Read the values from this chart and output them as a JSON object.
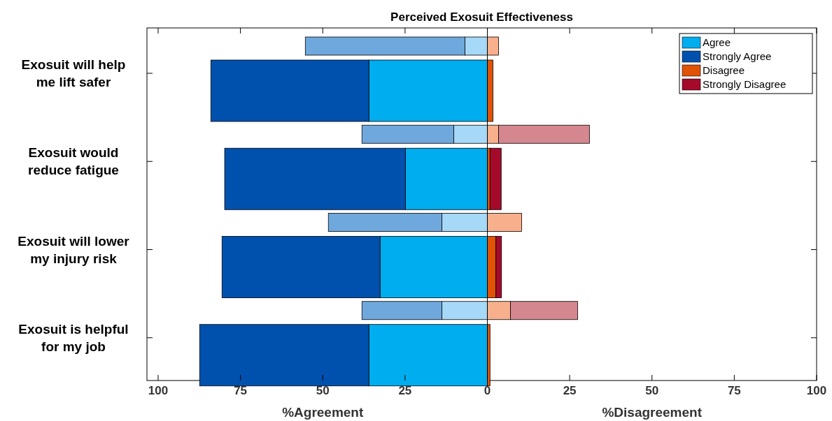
{
  "chart_data": {
    "type": "bar",
    "title": "Perceived Exosuit Effectiveness",
    "orientation": "horizontal",
    "stacked": true,
    "categories": [
      null,
      "Exosuit will  help me lift safer",
      null,
      "Exosuit would reduce fatigue",
      null,
      "Exosuit will lower my injury risk",
      null,
      "Exosuit is helpful for my job"
    ],
    "series": [
      {
        "name": "Agree",
        "color": "#00adef",
        "colors": [
          "#a6d9f7",
          "#00adef",
          "#a6d9f7",
          "#00adef",
          "#a6d9f7",
          "#00adef",
          "#a6d9f7",
          "#00adef"
        ],
        "values": [
          -6.8,
          -36.0,
          -10.2,
          -24.9,
          -13.8,
          -32.6,
          -13.8,
          -36.0
        ]
      },
      {
        "name": "Strongly Agree",
        "color": "#0050ae",
        "colors": [
          "#6fa8dc",
          "#0050ae",
          "#6fa8dc",
          "#0050ae",
          "#6fa8dc",
          "#0050ae",
          "#6fa8dc",
          "#0050ae"
        ],
        "values": [
          -48.5,
          -48.0,
          -27.9,
          -54.9,
          -34.5,
          -48.0,
          -24.3,
          -51.4
        ]
      },
      {
        "name": "Disagree",
        "color": "#e05206",
        "colors": [
          "#f8af8c",
          "#e05206",
          "#f8af8c",
          "#e05206",
          "#f8af8c",
          "#e05206",
          "#f8af8c",
          "#e05206"
        ],
        "values": [
          3.4,
          1.7,
          3.4,
          0.8,
          10.4,
          2.6,
          7.0,
          0.8
        ]
      },
      {
        "name": "Strongly Disagree",
        "color": "#a50a2b",
        "colors": [
          "#d58790",
          "#a50a2b",
          "#d58790",
          "#a50a2b",
          "#d58790",
          "#a50a2b",
          "#d58790",
          "#a50a2b"
        ],
        "values": [
          null,
          null,
          27.6,
          3.4,
          null,
          1.7,
          20.4,
          null
        ]
      }
    ],
    "xlim": [
      -103.4,
      100
    ],
    "xticks": [
      {
        "value": -100,
        "label": "100"
      },
      {
        "value": -75,
        "label": "75"
      },
      {
        "value": -50,
        "label": "50"
      },
      {
        "value": -25,
        "label": "25"
      },
      0,
      25,
      50,
      75,
      100
    ],
    "xlabel": "%Agreement",
    "annotations": [
      "%Disagreement"
    ],
    "ref_lines": [
      {
        "axis": "x",
        "value": 0,
        "color": "#000000"
      }
    ],
    "legend": "top right",
    "grid": false
  }
}
